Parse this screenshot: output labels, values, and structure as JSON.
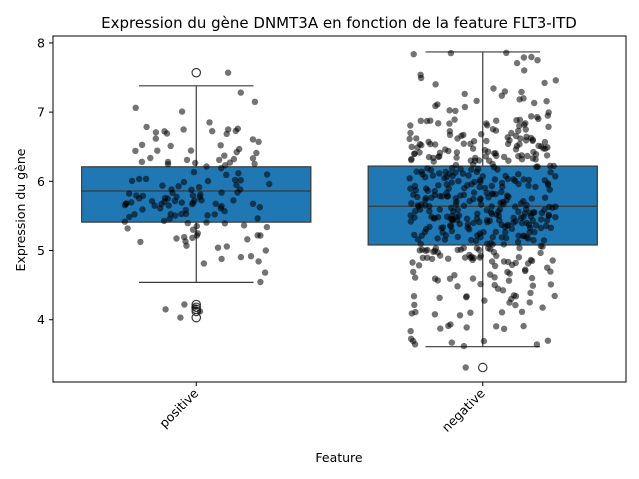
{
  "chart_data": {
    "type": "boxplot",
    "title": "Expression du gène DNMT3A en fonction de la feature FLT3-ITD",
    "xlabel": "Feature",
    "ylabel": "Expression du gène",
    "categories": [
      "positive",
      "negative"
    ],
    "ylim": [
      3.1,
      8.1
    ],
    "yticks": [
      4,
      5,
      6,
      7,
      8
    ],
    "box_color": "#1f77b4",
    "point_color": "#000000",
    "boxes": [
      {
        "category": "positive",
        "whisker_low": 4.54,
        "q1": 5.41,
        "median": 5.86,
        "q3": 6.21,
        "whisker_high": 7.38,
        "outliers": [
          7.57,
          4.22,
          4.18,
          4.15,
          4.12,
          4.03
        ],
        "n_points": 140
      },
      {
        "category": "negative",
        "whisker_low": 3.61,
        "q1": 5.08,
        "median": 5.64,
        "q3": 6.22,
        "whisker_high": 7.87,
        "outliers": [
          3.31
        ],
        "n_points": 480
      }
    ]
  }
}
